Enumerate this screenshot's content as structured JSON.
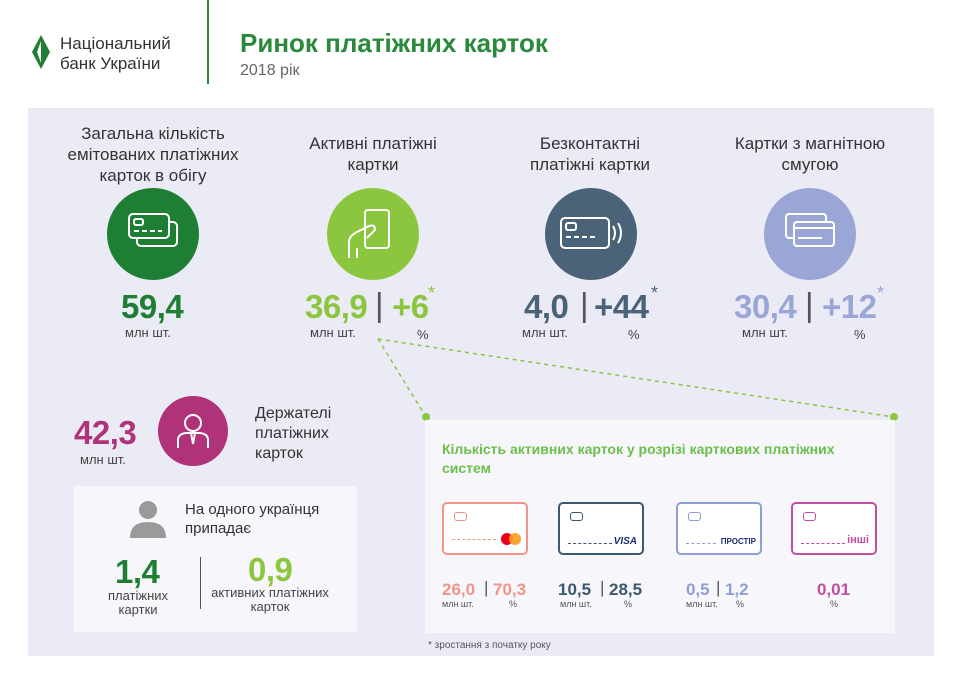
{
  "header": {
    "logo_line1": "Національний",
    "logo_line2": "банк України",
    "title": "Ринок платіжних карток",
    "year": "2018 рік"
  },
  "categories": [
    {
      "title": "Загальна кількість емітованих платіжних карток в обігу",
      "value": "59,4",
      "unit": "млн шт.",
      "growth": "",
      "growth_unit": "",
      "color": "#1e7e34"
    },
    {
      "title": "Активні платіжні картки",
      "value": "36,9",
      "unit": "млн шт.",
      "growth": "+6",
      "growth_unit": "%",
      "color": "#8cc63f"
    },
    {
      "title": "Безконтактні платіжні картки",
      "value": "4,0",
      "unit": "млн шт.",
      "growth": "+44",
      "growth_unit": "%",
      "color": "#4a6378"
    },
    {
      "title": "Картки з магнітною смугою",
      "value": "30,4",
      "unit": "млн шт.",
      "growth": "+12",
      "growth_unit": "%",
      "color": "#9aa6d6"
    }
  ],
  "holders": {
    "value": "42,3",
    "unit": "млн шт.",
    "label": "Держателі платіжних карток",
    "color": "#b0337a"
  },
  "per_person": {
    "title": "На одного українця припадає",
    "value1": "1,4",
    "label1": "платіжних картки",
    "value2": "0,9",
    "label2": "активних платіжних карток"
  },
  "systems": {
    "title": "Кількість активних карток у розрізі карткових платіжних систем",
    "items": [
      {
        "name": "mastercard",
        "brand": "",
        "value": "26,0",
        "share": "70,3",
        "unit": "млн шт.",
        "pct": "%",
        "color": "#f0948a"
      },
      {
        "name": "visa",
        "brand": "VISA",
        "value": "10,5",
        "share": "28,5",
        "unit": "млн шт.",
        "pct": "%",
        "color": "#3c5870"
      },
      {
        "name": "prostir",
        "brand": "ПРОСТІР",
        "value": "0,5",
        "share": "1,2",
        "unit": "млн шт.",
        "pct": "%",
        "color": "#8f9ed4"
      },
      {
        "name": "other",
        "brand": "інші",
        "value": "0,01",
        "share": "",
        "unit": "",
        "pct": "%",
        "color": "#c14ea0"
      }
    ]
  },
  "footnote": "* зростання з початку року",
  "asterisk": "*",
  "separator": "|"
}
